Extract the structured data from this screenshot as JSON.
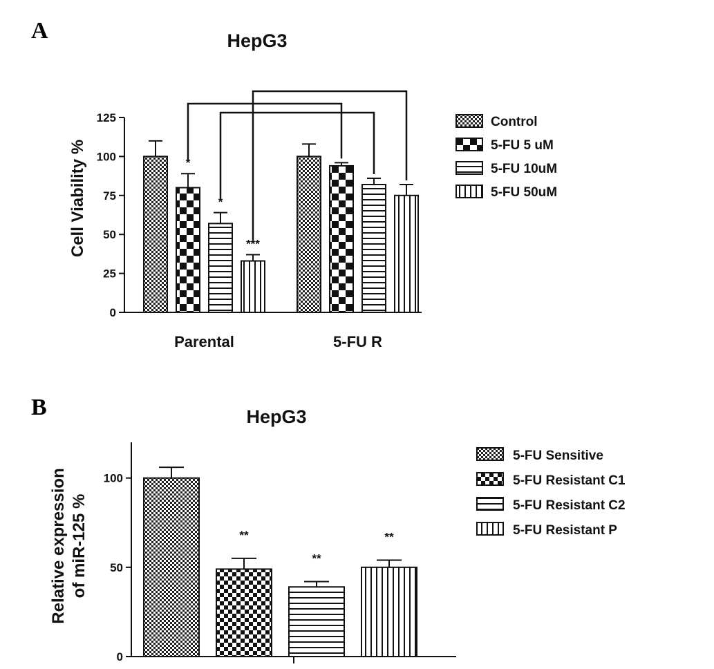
{
  "chart_data": [
    {
      "panel": "A",
      "type": "bar",
      "title": "HepG3",
      "ylabel": "Cell Viability %",
      "xlabel": "",
      "ylim": [
        0,
        125
      ],
      "yticks": [
        0,
        25,
        50,
        75,
        100,
        125
      ],
      "categories": [
        "Parental",
        "5-FU R"
      ],
      "series": [
        {
          "name": "Control",
          "pattern": "dense-check",
          "values": [
            100,
            100
          ],
          "errors": [
            10,
            8
          ],
          "annotations": [
            "",
            ""
          ]
        },
        {
          "name": "5-FU  5 uM",
          "pattern": "checker",
          "values": [
            80,
            94
          ],
          "errors": [
            9,
            2
          ],
          "annotations": [
            "*",
            ""
          ]
        },
        {
          "name": "5-FU  10uM",
          "pattern": "horizontal",
          "values": [
            57,
            82
          ],
          "errors": [
            7,
            4
          ],
          "annotations": [
            "*",
            ""
          ]
        },
        {
          "name": "5-FU  50uM",
          "pattern": "vertical",
          "values": [
            33,
            75
          ],
          "errors": [
            4,
            7
          ],
          "annotations": [
            "***",
            ""
          ]
        }
      ],
      "brackets": [
        {
          "from": [
            0,
            1
          ],
          "to": [
            1,
            1
          ]
        },
        {
          "from": [
            0,
            2
          ],
          "to": [
            1,
            2
          ]
        },
        {
          "from": [
            0,
            3
          ],
          "to": [
            1,
            3
          ]
        }
      ],
      "legend_position": "right",
      "grid": false
    },
    {
      "panel": "B",
      "type": "bar",
      "title": "HepG3",
      "ylabel": "Relative expression of miR-125 %",
      "ylabel_lines": [
        "Relative expression",
        "of miR-125 %"
      ],
      "xlabel": "",
      "ylim": [
        0,
        120
      ],
      "yticks": [
        0,
        50,
        100
      ],
      "categories": [
        "5-FU Sensitive",
        "5-FU Resistant C1",
        "5-FU Resistant C2",
        "5-FU Resistant P"
      ],
      "values": [
        100,
        49,
        39,
        50
      ],
      "errors": [
        6,
        6,
        3,
        4
      ],
      "patterns": [
        "dense-check",
        "checker",
        "horizontal",
        "vertical"
      ],
      "annotations": [
        "",
        "**",
        "**",
        "**"
      ],
      "legend_position": "right",
      "grid": false
    }
  ]
}
